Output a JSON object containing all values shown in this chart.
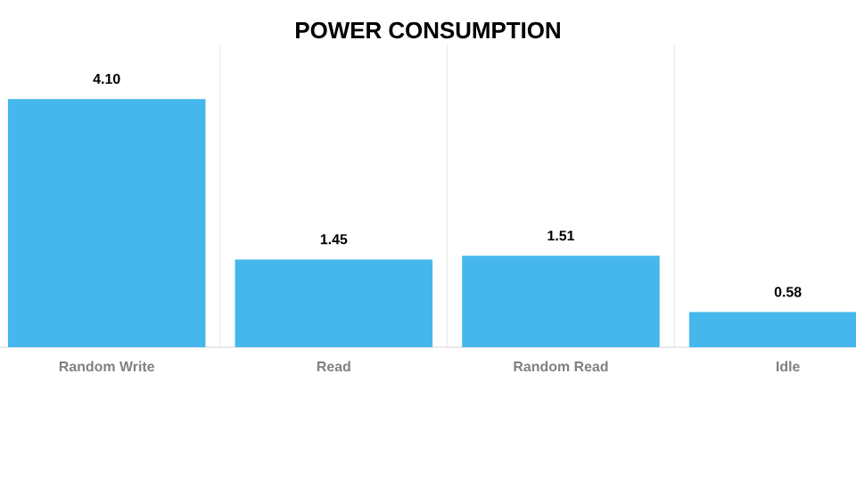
{
  "chart_data": {
    "type": "bar",
    "title": "POWER CONSUMPTION",
    "categories": [
      "Random Write",
      "Read",
      "Random Read",
      "Idle"
    ],
    "values": [
      4.1,
      1.45,
      1.51,
      0.58
    ],
    "value_labels": [
      "4.10",
      "1.45",
      "1.51",
      "0.58"
    ],
    "color": "#45b7ec",
    "ylim": [
      0,
      5
    ],
    "grid": true
  }
}
